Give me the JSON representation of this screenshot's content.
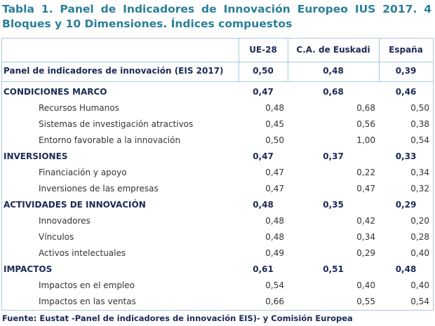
{
  "title_lines": [
    "Tabla 1. Panel de Indicadores de Innovación Europeo IUS 2017. 4",
    "Bloques y 10 Dimensiones. Índices compuestos"
  ],
  "table": {
    "columns": [
      "UE-28",
      "C.A. de Euskadi",
      "España"
    ],
    "summary": {
      "label": "Panel de indicadores de innovación (EIS 2017)",
      "values": [
        "0,50",
        "0,48",
        "0,39"
      ]
    },
    "sections": [
      {
        "label": "CONDICIONES MARCO",
        "values": [
          "0,47",
          "0,68",
          "0,46"
        ],
        "rows": [
          {
            "label": "Recursos Humanos",
            "values": [
              "0,48",
              "0,68",
              "0,50"
            ]
          },
          {
            "label": "Sistemas de investigación atractivos",
            "values": [
              "0,45",
              "0,56",
              "0,38"
            ]
          },
          {
            "label": "Entorno favorable a la innovación",
            "values": [
              "0,50",
              "1,00",
              "0,54"
            ]
          }
        ]
      },
      {
        "label": "INVERSIONES",
        "values": [
          "0,47",
          "0,37",
          "0,33"
        ],
        "rows": [
          {
            "label": "Financiación y apoyo",
            "values": [
              "0,47",
              "0,22",
              "0,34"
            ]
          },
          {
            "label": "Inversiones de las empresas",
            "values": [
              "0,47",
              "0,47",
              "0,32"
            ]
          }
        ]
      },
      {
        "label": "ACTIVIDADES DE INNOVACIÓN",
        "values": [
          "0,48",
          "0,35",
          "0,29"
        ],
        "rows": [
          {
            "label": "Innovadores",
            "values": [
              "0,48",
              "0,42",
              "0,20"
            ]
          },
          {
            "label": "Vínculos",
            "values": [
              "0,48",
              "0,34",
              "0,28"
            ]
          },
          {
            "label": "Activos intelectuales",
            "values": [
              "0,49",
              "0,29",
              "0,40"
            ]
          }
        ]
      },
      {
        "label": "IMPACTOS",
        "values": [
          "0,61",
          "0,51",
          "0,48"
        ],
        "rows": [
          {
            "label": "Impactos en el empleo",
            "values": [
              "0,54",
              "0,40",
              "0,40"
            ]
          },
          {
            "label": "Impactos en las ventas",
            "values": [
              "0,66",
              "0,55",
              "0,54"
            ]
          }
        ]
      }
    ]
  },
  "footer": "Fuente: Eustat -Panel de indicadores de innovación EIS)- y Comisión Europea"
}
